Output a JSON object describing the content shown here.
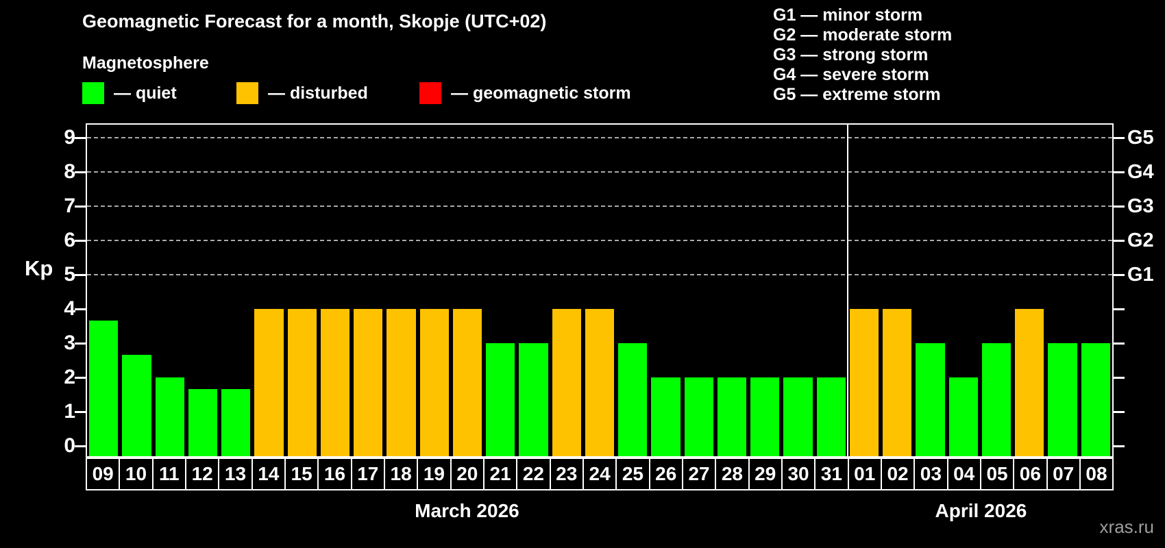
{
  "title": "Geomagnetic Forecast for a month, Skopje (UTC+02)",
  "subtitle": "Magnetosphere",
  "legend": {
    "items": [
      {
        "name": "quiet",
        "label": "— quiet",
        "color": "#00ff00"
      },
      {
        "name": "disturbed",
        "label": "— disturbed",
        "color": "#ffc200"
      },
      {
        "name": "geomagnetic-storm",
        "label": "— geomagnetic storm",
        "color": "#ff0000"
      }
    ]
  },
  "g_scale_legend": {
    "lines": [
      "G1 — minor storm",
      "G2 — moderate storm",
      "G3 — strong storm",
      "G4 — severe storm",
      "G5 — extreme storm"
    ]
  },
  "watermark": "xras.ru",
  "chart_data": {
    "type": "bar",
    "title": "Geomagnetic Forecast for a month, Skopje (UTC+02)",
    "ylabel": "Kp",
    "ylim": [
      0,
      9.4
    ],
    "yticks": [
      0,
      1,
      2,
      3,
      4,
      5,
      6,
      7,
      8,
      9
    ],
    "gridlines_at": [
      5,
      6,
      7,
      8,
      9
    ],
    "grid_style": "dashed",
    "grid_color": "#aaaaaa",
    "legend_position": "top",
    "right_axis": [
      {
        "kp": 5,
        "label": "G1"
      },
      {
        "kp": 6,
        "label": "G2"
      },
      {
        "kp": 7,
        "label": "G3"
      },
      {
        "kp": 8,
        "label": "G4"
      },
      {
        "kp": 9,
        "label": "G5"
      }
    ],
    "state_colors": {
      "quiet": "#00ff00",
      "disturbed": "#ffc200",
      "storm": "#ff0000"
    },
    "months": [
      {
        "label": "March 2026",
        "days": [
          {
            "day": "09",
            "kp": 3.67,
            "state": "quiet"
          },
          {
            "day": "10",
            "kp": 2.67,
            "state": "quiet"
          },
          {
            "day": "11",
            "kp": 2.0,
            "state": "quiet"
          },
          {
            "day": "12",
            "kp": 1.67,
            "state": "quiet"
          },
          {
            "day": "13",
            "kp": 1.67,
            "state": "quiet"
          },
          {
            "day": "14",
            "kp": 4.0,
            "state": "disturbed"
          },
          {
            "day": "15",
            "kp": 4.0,
            "state": "disturbed"
          },
          {
            "day": "16",
            "kp": 4.0,
            "state": "disturbed"
          },
          {
            "day": "17",
            "kp": 4.0,
            "state": "disturbed"
          },
          {
            "day": "18",
            "kp": 4.0,
            "state": "disturbed"
          },
          {
            "day": "19",
            "kp": 4.0,
            "state": "disturbed"
          },
          {
            "day": "20",
            "kp": 4.0,
            "state": "disturbed"
          },
          {
            "day": "21",
            "kp": 3.0,
            "state": "quiet"
          },
          {
            "day": "22",
            "kp": 3.0,
            "state": "quiet"
          },
          {
            "day": "23",
            "kp": 4.0,
            "state": "disturbed"
          },
          {
            "day": "24",
            "kp": 4.0,
            "state": "disturbed"
          },
          {
            "day": "25",
            "kp": 3.0,
            "state": "quiet"
          },
          {
            "day": "26",
            "kp": 2.0,
            "state": "quiet"
          },
          {
            "day": "27",
            "kp": 2.0,
            "state": "quiet"
          },
          {
            "day": "28",
            "kp": 2.0,
            "state": "quiet"
          },
          {
            "day": "29",
            "kp": 2.0,
            "state": "quiet"
          },
          {
            "day": "30",
            "kp": 2.0,
            "state": "quiet"
          },
          {
            "day": "31",
            "kp": 2.0,
            "state": "quiet"
          }
        ]
      },
      {
        "label": "April 2026",
        "days": [
          {
            "day": "01",
            "kp": 4.0,
            "state": "disturbed"
          },
          {
            "day": "02",
            "kp": 4.0,
            "state": "disturbed"
          },
          {
            "day": "03",
            "kp": 3.0,
            "state": "quiet"
          },
          {
            "day": "04",
            "kp": 2.0,
            "state": "quiet"
          },
          {
            "day": "05",
            "kp": 3.0,
            "state": "quiet"
          },
          {
            "day": "06",
            "kp": 4.0,
            "state": "disturbed"
          },
          {
            "day": "07",
            "kp": 3.0,
            "state": "quiet"
          },
          {
            "day": "08",
            "kp": 3.0,
            "state": "quiet"
          }
        ]
      }
    ]
  }
}
